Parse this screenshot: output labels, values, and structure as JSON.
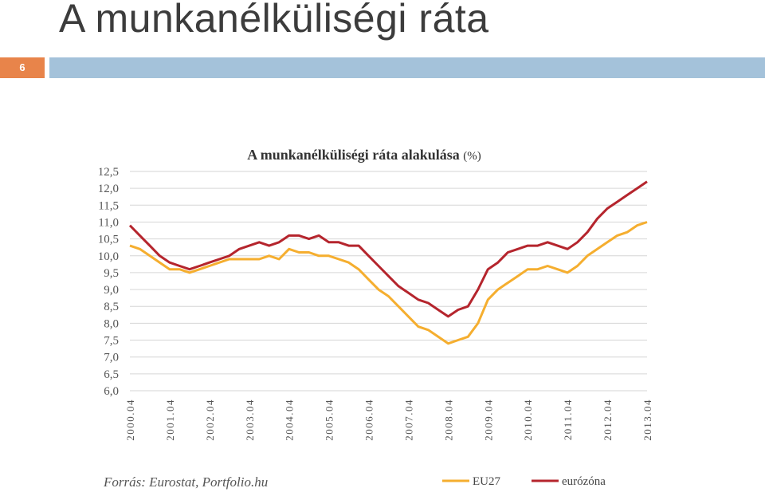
{
  "slide": {
    "title": "A munkanélküliségi ráta",
    "number": "6",
    "colors": {
      "number_bg": "#e8844a",
      "bar_bg": "#a4c2da"
    }
  },
  "chart_data": {
    "type": "line",
    "title": "A munkanélküliségi ráta alakulása",
    "title_unit": "(%)",
    "xlabel": "",
    "ylabel": "",
    "x_range": [
      "2000.04",
      "2013.04"
    ],
    "ylim": [
      6.0,
      12.5
    ],
    "grid": true,
    "y_ticks": [
      "12,5",
      "12,0",
      "11,5",
      "11,0",
      "10,5",
      "10,0",
      "9,5",
      "9,0",
      "8,5",
      "8,0",
      "7,5",
      "7,0",
      "6,5",
      "6,0"
    ],
    "x_ticks": [
      "2000.04",
      "2001.04",
      "2002.04",
      "2003.04",
      "2004.04",
      "2005.04",
      "2006.04",
      "2007.04",
      "2008.04",
      "2009.04",
      "2010.04",
      "2011.04",
      "2012.04",
      "2013.04"
    ],
    "source": "Forrás: Eurostat, Portfolio.hu",
    "legend_position": "bottom-right",
    "series": [
      {
        "name": "EU27",
        "color": "#f5ae2f",
        "points": [
          [
            "2000.04",
            10.3
          ],
          [
            "2000.07",
            10.2
          ],
          [
            "2000.10",
            10.0
          ],
          [
            "2001.01",
            9.8
          ],
          [
            "2001.04",
            9.6
          ],
          [
            "2001.07",
            9.6
          ],
          [
            "2001.10",
            9.5
          ],
          [
            "2002.01",
            9.6
          ],
          [
            "2002.04",
            9.7
          ],
          [
            "2002.07",
            9.8
          ],
          [
            "2002.10",
            9.9
          ],
          [
            "2003.01",
            9.9
          ],
          [
            "2003.04",
            9.9
          ],
          [
            "2003.07",
            9.9
          ],
          [
            "2003.10",
            10.0
          ],
          [
            "2004.01",
            9.9
          ],
          [
            "2004.04",
            10.2
          ],
          [
            "2004.07",
            10.1
          ],
          [
            "2004.10",
            10.1
          ],
          [
            "2005.01",
            10.0
          ],
          [
            "2005.04",
            10.0
          ],
          [
            "2005.07",
            9.9
          ],
          [
            "2005.10",
            9.8
          ],
          [
            "2006.01",
            9.6
          ],
          [
            "2006.04",
            9.3
          ],
          [
            "2006.07",
            9.0
          ],
          [
            "2006.10",
            8.8
          ],
          [
            "2007.01",
            8.5
          ],
          [
            "2007.04",
            8.2
          ],
          [
            "2007.07",
            7.9
          ],
          [
            "2007.10",
            7.8
          ],
          [
            "2008.01",
            7.6
          ],
          [
            "2008.04",
            7.4
          ],
          [
            "2008.07",
            7.5
          ],
          [
            "2008.10",
            7.6
          ],
          [
            "2009.01",
            8.0
          ],
          [
            "2009.04",
            8.7
          ],
          [
            "2009.07",
            9.0
          ],
          [
            "2009.10",
            9.2
          ],
          [
            "2010.01",
            9.4
          ],
          [
            "2010.04",
            9.6
          ],
          [
            "2010.07",
            9.6
          ],
          [
            "2010.10",
            9.7
          ],
          [
            "2011.01",
            9.6
          ],
          [
            "2011.04",
            9.5
          ],
          [
            "2011.07",
            9.7
          ],
          [
            "2011.10",
            10.0
          ],
          [
            "2012.01",
            10.2
          ],
          [
            "2012.04",
            10.4
          ],
          [
            "2012.07",
            10.6
          ],
          [
            "2012.10",
            10.7
          ],
          [
            "2013.01",
            10.9
          ],
          [
            "2013.04",
            11.0
          ]
        ]
      },
      {
        "name": "eurózóna",
        "color": "#b5252d",
        "points": [
          [
            "2000.04",
            10.9
          ],
          [
            "2000.07",
            10.6
          ],
          [
            "2000.10",
            10.3
          ],
          [
            "2001.01",
            10.0
          ],
          [
            "2001.04",
            9.8
          ],
          [
            "2001.07",
            9.7
          ],
          [
            "2001.10",
            9.6
          ],
          [
            "2002.01",
            9.7
          ],
          [
            "2002.04",
            9.8
          ],
          [
            "2002.07",
            9.9
          ],
          [
            "2002.10",
            10.0
          ],
          [
            "2003.01",
            10.2
          ],
          [
            "2003.04",
            10.3
          ],
          [
            "2003.07",
            10.4
          ],
          [
            "2003.10",
            10.3
          ],
          [
            "2004.01",
            10.4
          ],
          [
            "2004.04",
            10.6
          ],
          [
            "2004.07",
            10.6
          ],
          [
            "2004.10",
            10.5
          ],
          [
            "2005.01",
            10.6
          ],
          [
            "2005.04",
            10.4
          ],
          [
            "2005.07",
            10.4
          ],
          [
            "2005.10",
            10.3
          ],
          [
            "2006.01",
            10.3
          ],
          [
            "2006.04",
            10.0
          ],
          [
            "2006.07",
            9.7
          ],
          [
            "2006.10",
            9.4
          ],
          [
            "2007.01",
            9.1
          ],
          [
            "2007.04",
            8.9
          ],
          [
            "2007.07",
            8.7
          ],
          [
            "2007.10",
            8.6
          ],
          [
            "2008.01",
            8.4
          ],
          [
            "2008.04",
            8.2
          ],
          [
            "2008.07",
            8.4
          ],
          [
            "2008.10",
            8.5
          ],
          [
            "2009.01",
            9.0
          ],
          [
            "2009.04",
            9.6
          ],
          [
            "2009.07",
            9.8
          ],
          [
            "2009.10",
            10.1
          ],
          [
            "2010.01",
            10.2
          ],
          [
            "2010.04",
            10.3
          ],
          [
            "2010.07",
            10.3
          ],
          [
            "2010.10",
            10.4
          ],
          [
            "2011.01",
            10.3
          ],
          [
            "2011.04",
            10.2
          ],
          [
            "2011.07",
            10.4
          ],
          [
            "2011.10",
            10.7
          ],
          [
            "2012.01",
            11.1
          ],
          [
            "2012.04",
            11.4
          ],
          [
            "2012.07",
            11.6
          ],
          [
            "2012.10",
            11.8
          ],
          [
            "2013.01",
            12.0
          ],
          [
            "2013.04",
            12.2
          ]
        ]
      }
    ]
  }
}
